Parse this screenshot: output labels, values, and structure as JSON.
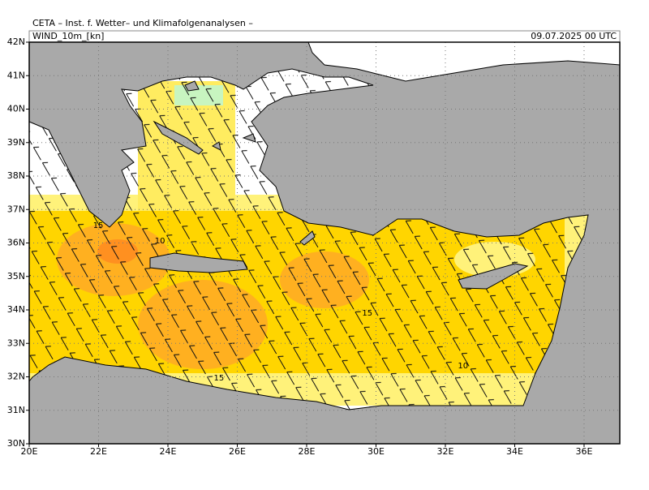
{
  "header": {
    "title": "CETA – Inst. f. Wetter– und Klimafolgenanalysen –",
    "field": "WIND_10m_[kn]",
    "valid_time": "09.07.2025 00 UTC"
  },
  "map": {
    "lonlim": [
      20,
      37.03
    ],
    "latlim": [
      30,
      42
    ],
    "lon_ticks": [
      {
        "value": 20,
        "label": "20E"
      },
      {
        "value": 22,
        "label": "22E"
      },
      {
        "value": 24,
        "label": "24E"
      },
      {
        "value": 26,
        "label": "26E"
      },
      {
        "value": 28,
        "label": "28E"
      },
      {
        "value": 30,
        "label": "30E"
      },
      {
        "value": 32,
        "label": "32E"
      },
      {
        "value": 34,
        "label": "34E"
      },
      {
        "value": 36,
        "label": "36E"
      }
    ],
    "lat_ticks": [
      {
        "value": 42,
        "label": "42N"
      },
      {
        "value": 41,
        "label": "41N"
      },
      {
        "value": 40,
        "label": "40N"
      },
      {
        "value": 39,
        "label": "39N"
      },
      {
        "value": 38,
        "label": "38N"
      },
      {
        "value": 37,
        "label": "37N"
      },
      {
        "value": 36,
        "label": "36N"
      },
      {
        "value": 35,
        "label": "35N"
      },
      {
        "value": 34,
        "label": "34N"
      },
      {
        "value": 33,
        "label": "33N"
      },
      {
        "value": 32,
        "label": "32N"
      },
      {
        "value": 31,
        "label": "31N"
      },
      {
        "value": 30,
        "label": "30N"
      }
    ],
    "contour_labels": [
      {
        "value": 15,
        "lon": 21.99,
        "lat": 36.52
      },
      {
        "value": 10,
        "lon": 23.77,
        "lat": 36.06
      },
      {
        "value": 15,
        "lon": 29.75,
        "lat": 33.9
      },
      {
        "value": 10,
        "lon": 32.51,
        "lat": 32.33
      },
      {
        "value": 15,
        "lon": 25.47,
        "lat": 31.96
      }
    ]
  }
}
